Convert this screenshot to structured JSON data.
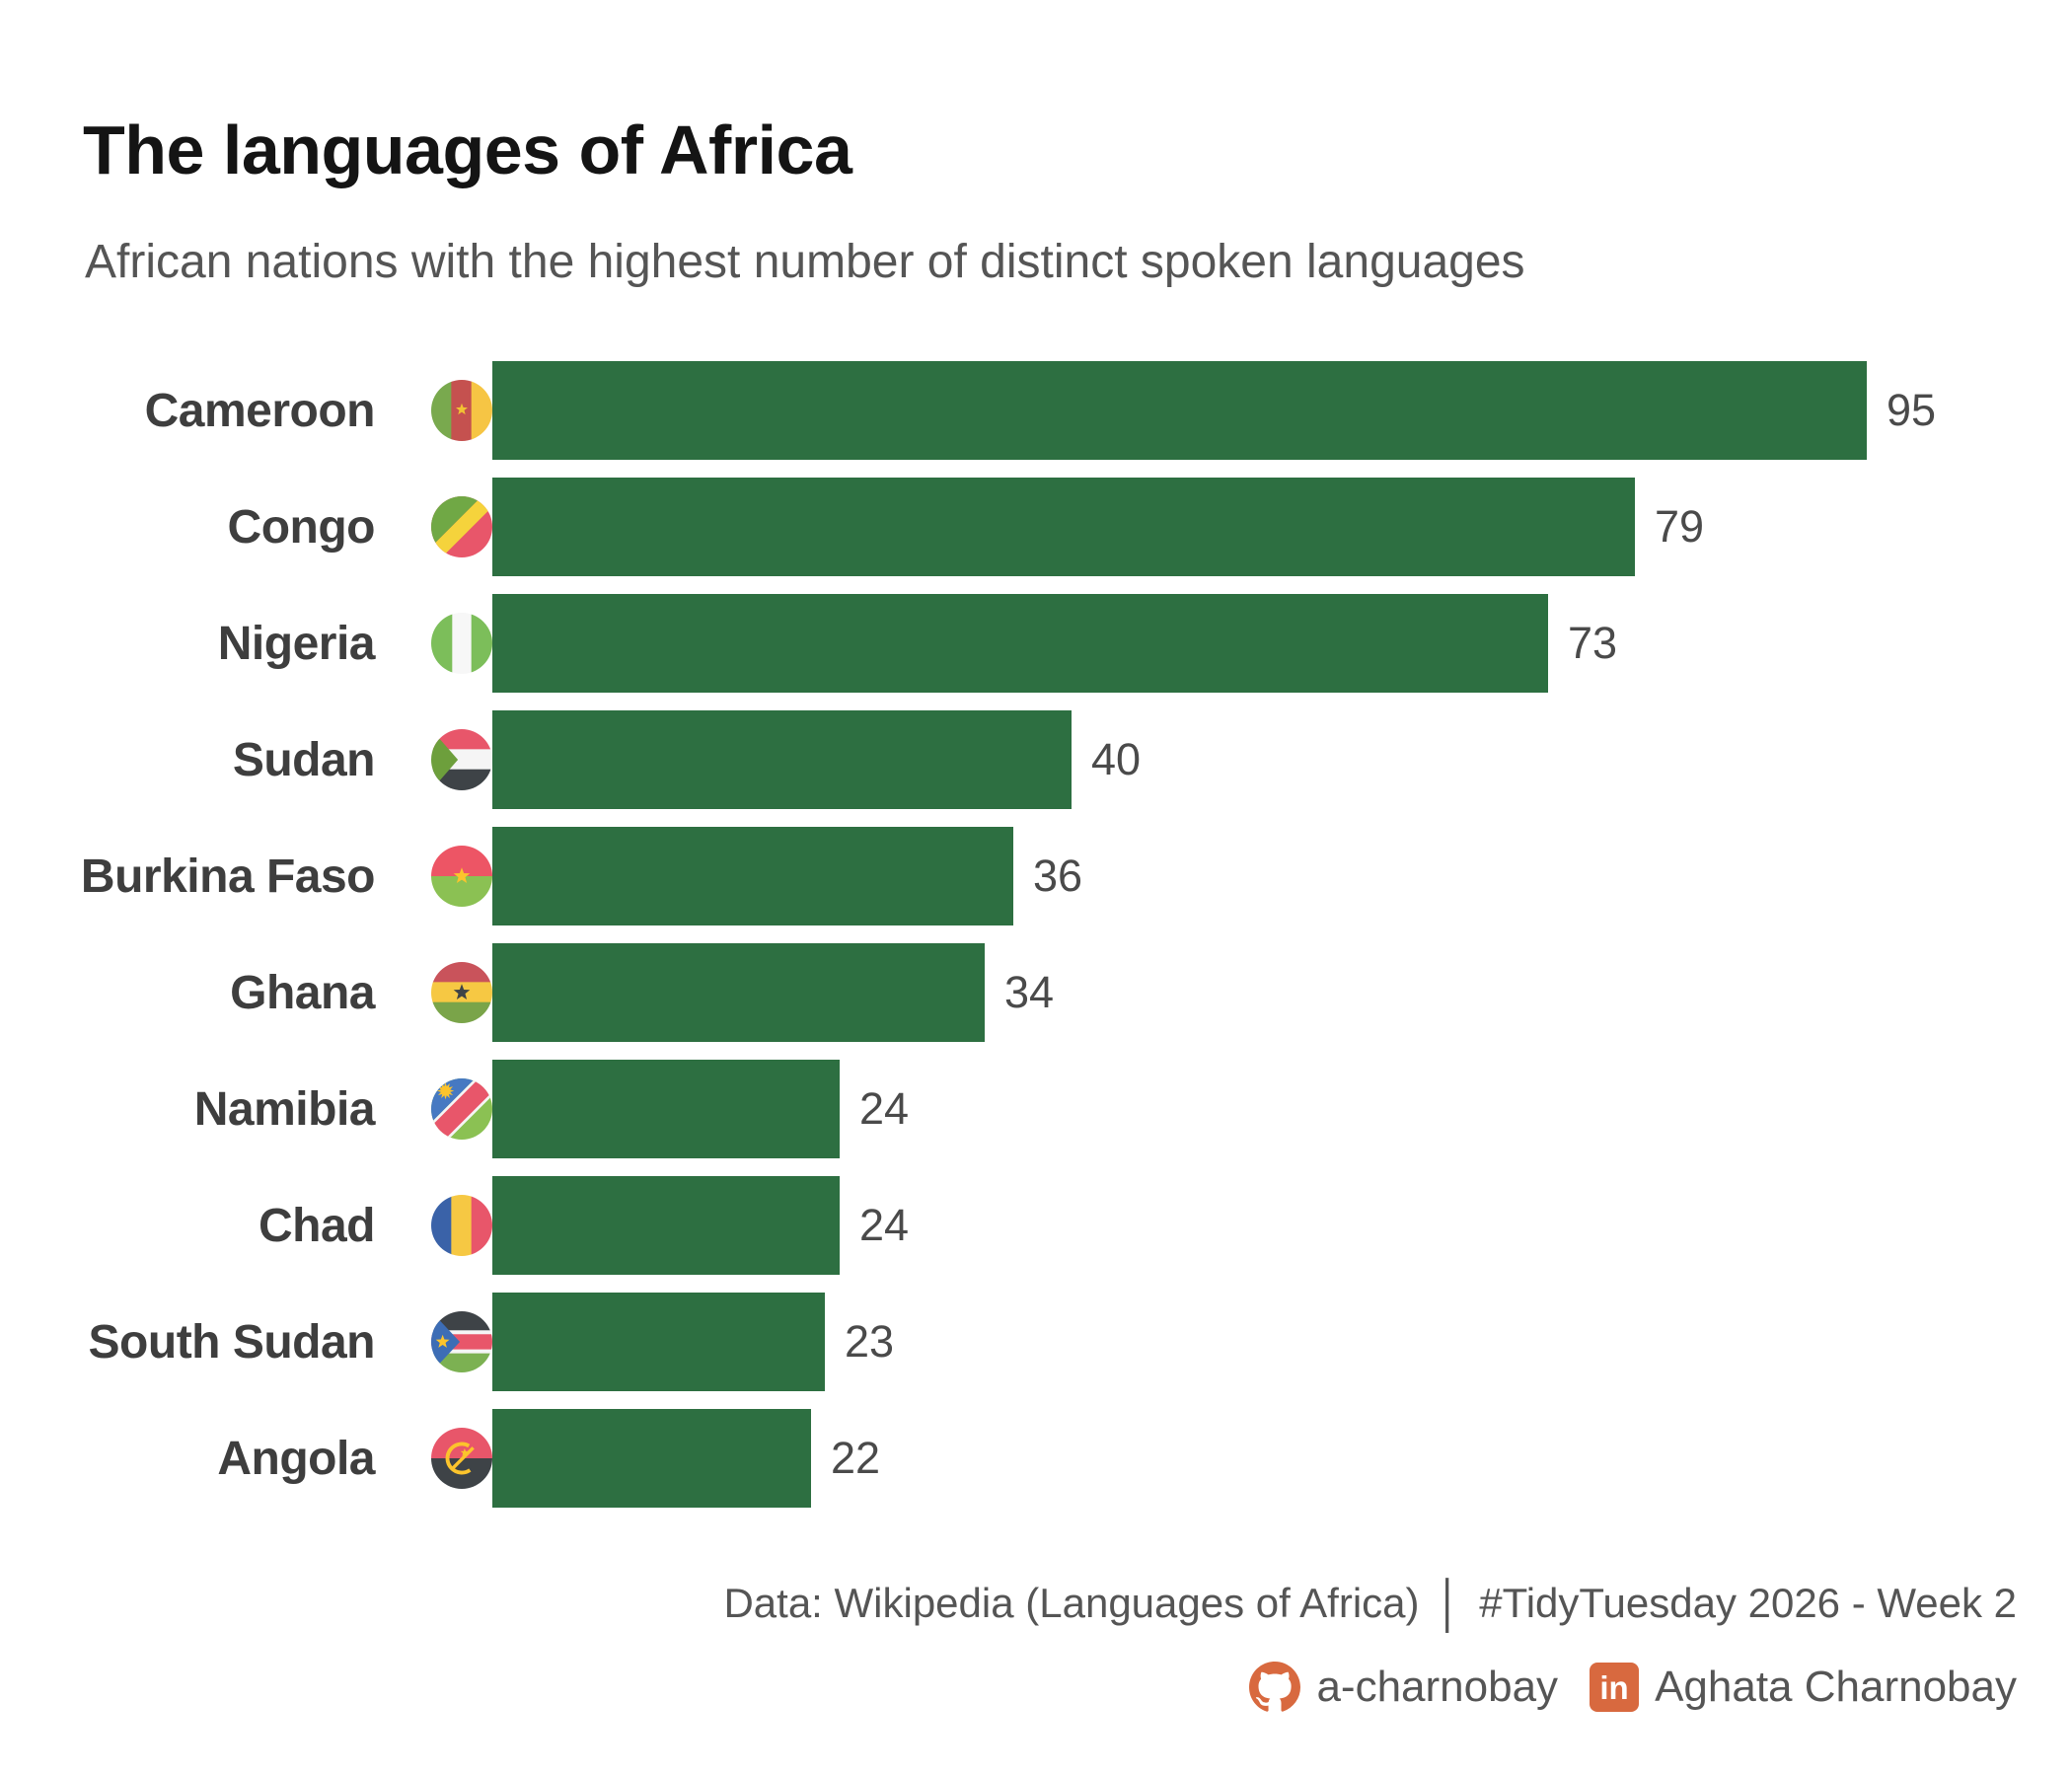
{
  "header": {
    "title": "The languages of Africa",
    "subtitle": "African nations with the highest number of distinct spoken languages"
  },
  "chart_data": {
    "type": "bar",
    "orientation": "horizontal",
    "title": "The languages of Africa",
    "subtitle": "African nations with the highest number of distinct spoken languages",
    "categories": [
      "Cameroon",
      "Congo",
      "Nigeria",
      "Sudan",
      "Burkina Faso",
      "Ghana",
      "Namibia",
      "Chad",
      "South Sudan",
      "Angola"
    ],
    "values": [
      95,
      79,
      73,
      40,
      36,
      34,
      24,
      24,
      23,
      22
    ],
    "flags": [
      "cameroon-flag-icon",
      "congo-flag-icon",
      "nigeria-flag-icon",
      "sudan-flag-icon",
      "burkina-faso-flag-icon",
      "ghana-flag-icon",
      "namibia-flag-icon",
      "chad-flag-icon",
      "south-sudan-flag-icon",
      "angola-flag-icon"
    ],
    "xlabel": "",
    "ylabel": "",
    "xlim": [
      0,
      95
    ],
    "grid": false,
    "legend": "none",
    "value_labels_shown": true,
    "bar_color": "#2D6F41"
  },
  "footer": {
    "source_text": "Data: Wikipedia (Languages of Africa)",
    "separator": "│",
    "hashtag_text": "#TidyTuesday 2026 - Week 2",
    "github_handle": "a-charnobay",
    "linkedin_name": "Aghata Charnobay",
    "linkedin_glyph": "in",
    "accent_color": "#D8693F"
  },
  "colors": {
    "bar": "#2D6F41",
    "title_text": "#141414",
    "subtitle_text": "#555555",
    "country_label": "#3E3E3E",
    "value_label": "#4A4A4A",
    "footer_text": "#555555",
    "accent_orange": "#D8693F",
    "background": "#FFFFFF"
  }
}
